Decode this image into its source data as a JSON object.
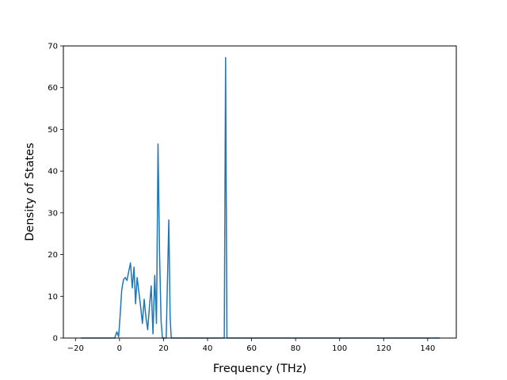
{
  "chart_data": {
    "type": "line",
    "title": "",
    "xlabel": "Frequency (THz)",
    "ylabel": "Density of States",
    "xlim": [
      -25.5,
      153
    ],
    "ylim": [
      0,
      70
    ],
    "xticks": [
      -20,
      0,
      20,
      40,
      60,
      80,
      100,
      120,
      140
    ],
    "yticks": [
      0,
      10,
      20,
      30,
      40,
      50,
      60,
      70
    ],
    "grid": false,
    "legend": "none",
    "color": "#1f77b4",
    "series": [
      {
        "x": [
          -17.5,
          -2.2,
          -1.2,
          -0.4,
          0.3,
          1.0,
          1.8,
          2.6,
          3.4,
          4.2,
          5.0,
          5.8,
          6.6,
          7.3,
          8.0,
          8.8,
          9.6,
          10.4,
          11.2,
          12.0,
          12.8,
          13.6,
          14.4,
          15.2,
          16.0,
          16.8,
          17.5,
          18.2,
          18.9,
          19.5,
          20.0,
          20.6,
          21.2,
          21.8,
          22.4,
          23.0,
          23.5,
          24.0,
          24.6,
          25.5,
          47.0,
          47.6,
          48.2,
          48.8,
          49.4,
          50.5,
          145.5
        ],
        "y": [
          0,
          0,
          1.5,
          0.3,
          5.5,
          11.5,
          14.0,
          14.5,
          13.8,
          16.0,
          18.0,
          12.0,
          17.0,
          8.2,
          14.5,
          11.0,
          7.5,
          3.5,
          9.3,
          5.0,
          2.0,
          7.5,
          12.5,
          1.0,
          15.0,
          3.5,
          46.5,
          20.0,
          4.0,
          0,
          0,
          0,
          0,
          14.0,
          28.3,
          5.0,
          0,
          0,
          0,
          0,
          0,
          0,
          67.2,
          0,
          0,
          0,
          0
        ]
      }
    ]
  }
}
